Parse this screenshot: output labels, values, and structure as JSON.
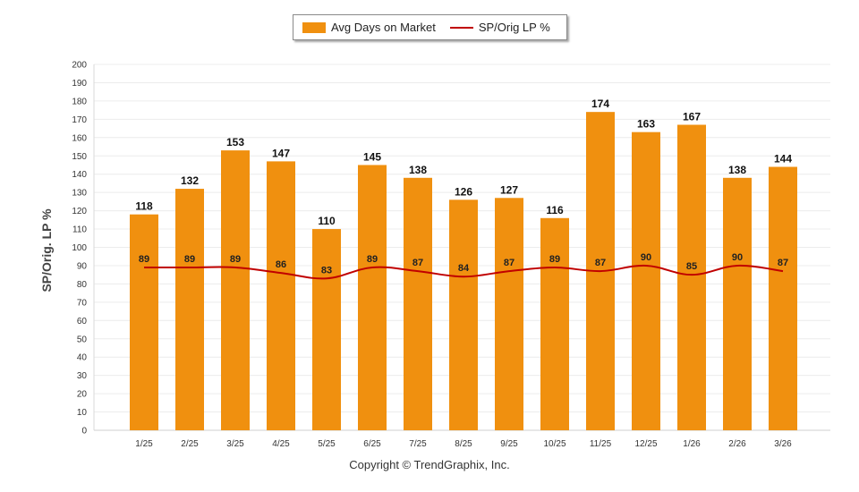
{
  "chart_data": {
    "type": "bar",
    "categories": [
      "1/25",
      "2/25",
      "3/25",
      "4/25",
      "5/25",
      "6/25",
      "7/25",
      "8/25",
      "9/25",
      "10/25",
      "11/25",
      "12/25",
      "1/26",
      "2/26",
      "3/26"
    ],
    "series": [
      {
        "name": "Avg Days on Market",
        "type": "bar",
        "color": "#f0900f",
        "values": [
          118,
          132,
          153,
          147,
          110,
          145,
          138,
          126,
          127,
          116,
          174,
          163,
          167,
          138,
          144
        ]
      },
      {
        "name": "SP/Orig LP %",
        "type": "line",
        "color": "#c00000",
        "values": [
          89,
          89,
          89,
          86,
          83,
          89,
          87,
          84,
          87,
          89,
          87,
          90,
          85,
          90,
          87
        ]
      }
    ],
    "ylabel": "SP/Orig. LP %",
    "ylim": [
      0,
      200
    ],
    "yticks": [
      0,
      10,
      20,
      30,
      40,
      50,
      60,
      70,
      80,
      90,
      100,
      110,
      120,
      130,
      140,
      150,
      160,
      170,
      180,
      190,
      200
    ],
    "grid": true,
    "legend_position": "top-center"
  },
  "footer": {
    "copyright": "Copyright © TrendGraphix, Inc."
  }
}
